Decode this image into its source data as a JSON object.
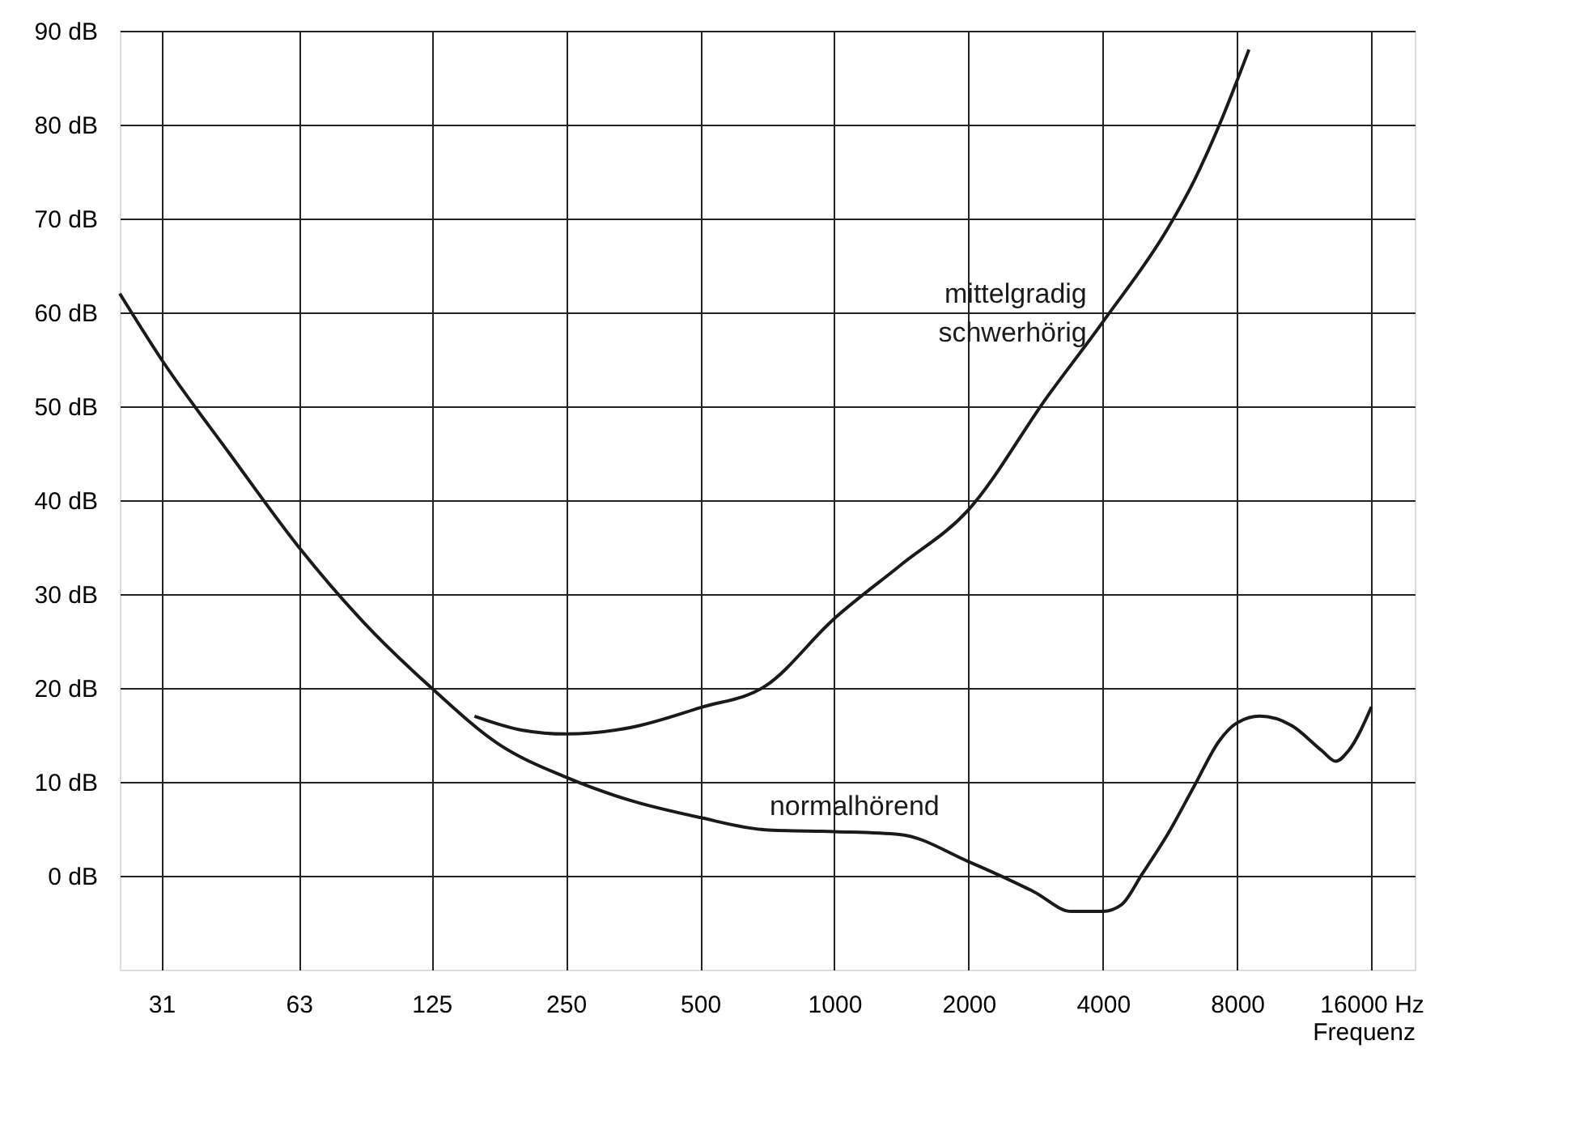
{
  "chart_data": {
    "type": "line",
    "xlabel": "Frequenz",
    "log": "x",
    "grid": true,
    "line_style": "solid",
    "marker": "none",
    "xlim": [
      25,
      20000
    ],
    "xticks": [
      31,
      63,
      125,
      250,
      500,
      1000,
      2000,
      4000,
      8000,
      {
        "value": 16000,
        "label": "16000 Hz"
      }
    ],
    "ylim": [
      -10,
      90
    ],
    "yticks": [
      {
        "value": 0,
        "label": "0 dB"
      },
      {
        "value": 10,
        "label": "10 dB"
      },
      {
        "value": 20,
        "label": "20 dB"
      },
      {
        "value": 30,
        "label": "30 dB"
      },
      {
        "value": 40,
        "label": "40 dB"
      },
      {
        "value": 50,
        "label": "50 dB"
      },
      {
        "value": 60,
        "label": "60 dB"
      },
      {
        "value": 70,
        "label": "70 dB"
      },
      {
        "value": 80,
        "label": "80 dB"
      },
      {
        "value": 90,
        "label": "90 dB"
      }
    ],
    "series": [
      {
        "name": "normalhörend",
        "color": "#1a1a1a",
        "x": [
          25,
          31,
          44,
          63,
          88,
          125,
          177,
          250,
          350,
          500,
          700,
          1000,
          1400,
          2000,
          2800,
          3400,
          4000,
          4400,
          4900,
          5600,
          6400,
          7300,
          8000,
          9000,
          10600,
          12400,
          13300,
          14200,
          16000
        ],
        "values": [
          62,
          55,
          45,
          35,
          27,
          20,
          14,
          10.5,
          8,
          6.2,
          4.9,
          4.7,
          4.4,
          1.5,
          -1.7,
          -3.8,
          -3.8,
          -3.1,
          0.2,
          4.5,
          9.5,
          14.4,
          16.3,
          17,
          16,
          13.3,
          12.2,
          13.3,
          18
        ]
      },
      {
        "name": "mittelgradig schwerhörig",
        "color": "#1a1a1a",
        "x": [
          156,
          200,
          250,
          350,
          500,
          700,
          1000,
          1400,
          2000,
          3000,
          4000,
          5600,
          6400,
          7300,
          8500
        ],
        "values": [
          17,
          15.5,
          15.1,
          15.8,
          17.9,
          20.2,
          27.4,
          33,
          39,
          51,
          59,
          69,
          74,
          80,
          88
        ]
      }
    ]
  }
}
